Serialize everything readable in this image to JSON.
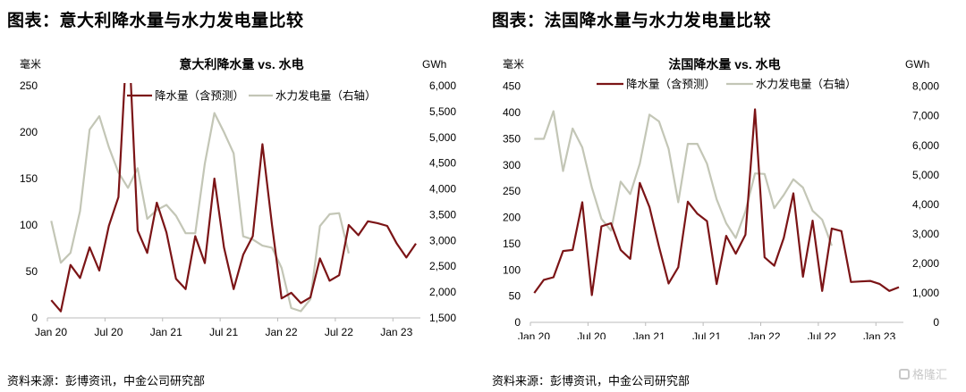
{
  "figures": [
    {
      "heading": "图表：意大利降水量与水力发电量比较",
      "source": "资料来源：彭博资讯，中金公司研究部"
    },
    {
      "heading": "图表：法国降水量与水力发电量比较",
      "source": "资料来源：彭博资讯，中金公司研究部"
    }
  ],
  "watermark": "格隆汇",
  "colors": {
    "precip": "#7b1416",
    "hydro": "#c3c6b6"
  },
  "chart_data": [
    {
      "type": "line",
      "title": "意大利降水量 vs. 水电",
      "ylabel": "毫米",
      "y2label": "GWh",
      "ylim": [
        0,
        250
      ],
      "y2lim": [
        1500,
        6000
      ],
      "yticks": [
        "0",
        "50",
        "100",
        "150",
        "200",
        "250"
      ],
      "y2ticks": [
        "1,500",
        "2,000",
        "2,500",
        "3,000",
        "3,500",
        "4,000",
        "4,500",
        "5,000",
        "5,500",
        "6,000"
      ],
      "xticks": [
        "Jan 20",
        "Jul 20",
        "Jan 21",
        "Jul 21",
        "Jan 22",
        "Jul 22",
        "Jan 23"
      ],
      "x_start": "Jan 2020",
      "x_step": "month",
      "legend": "top-center",
      "series": [
        {
          "name": "降水量（含预测）",
          "axis": "left",
          "values": [
            19,
            7,
            57,
            43,
            76,
            51,
            99,
            130,
            320,
            94,
            70,
            124,
            92,
            42,
            31,
            88,
            59,
            150,
            76,
            31,
            68,
            88,
            187,
            100,
            21,
            27,
            16,
            22,
            64,
            40,
            46,
            100,
            89,
            104,
            102,
            99,
            80,
            65,
            80
          ]
        },
        {
          "name": "水力发电量（右轴）",
          "axis": "right",
          "values": [
            3380,
            2570,
            2760,
            3570,
            5150,
            5410,
            4810,
            4320,
            4020,
            4400,
            3420,
            3590,
            3690,
            3480,
            3140,
            3140,
            4490,
            5470,
            5100,
            4690,
            3080,
            3020,
            2900,
            2860,
            2470,
            1690,
            1630,
            1860,
            3280,
            3510,
            3530,
            2750
          ]
        }
      ]
    },
    {
      "type": "line",
      "title": "法国降水量 vs. 水电",
      "ylabel": "毫米",
      "y2label": "GWh",
      "ylim": [
        0,
        450
      ],
      "y2lim": [
        0,
        8000
      ],
      "yticks": [
        "0",
        "50",
        "100",
        "150",
        "200",
        "250",
        "300",
        "350",
        "400",
        "450"
      ],
      "y2ticks": [
        "0",
        "1,000",
        "2,000",
        "3,000",
        "4,000",
        "5,000",
        "6,000",
        "7,000",
        "8,000"
      ],
      "xticks": [
        "Jan 20",
        "Jul 20",
        "Jan 21",
        "Jul 21",
        "Jan 22",
        "Jul 22",
        "Jan 23"
      ],
      "x_start": "Jan 2020",
      "x_step": "month",
      "legend": "top-center",
      "series": [
        {
          "name": "降水量（含预测）",
          "axis": "left",
          "values": [
            56,
            81,
            86,
            136,
            138,
            229,
            52,
            183,
            189,
            138,
            121,
            266,
            220,
            144,
            74,
            105,
            230,
            207,
            193,
            73,
            165,
            131,
            167,
            406,
            124,
            108,
            161,
            246,
            87,
            194,
            60,
            179,
            174,
            77,
            78,
            79,
            73,
            60,
            67
          ]
        },
        {
          "name": "水力发电量（右轴）",
          "axis": "right",
          "values": [
            6220,
            6220,
            7160,
            5130,
            6570,
            5930,
            4570,
            3510,
            3110,
            4770,
            4350,
            5380,
            7040,
            6810,
            5880,
            4070,
            6050,
            6050,
            5380,
            4170,
            3360,
            2860,
            3760,
            5050,
            5030,
            3870,
            4320,
            4850,
            4570,
            3780,
            3480,
            2600
          ]
        }
      ]
    }
  ]
}
